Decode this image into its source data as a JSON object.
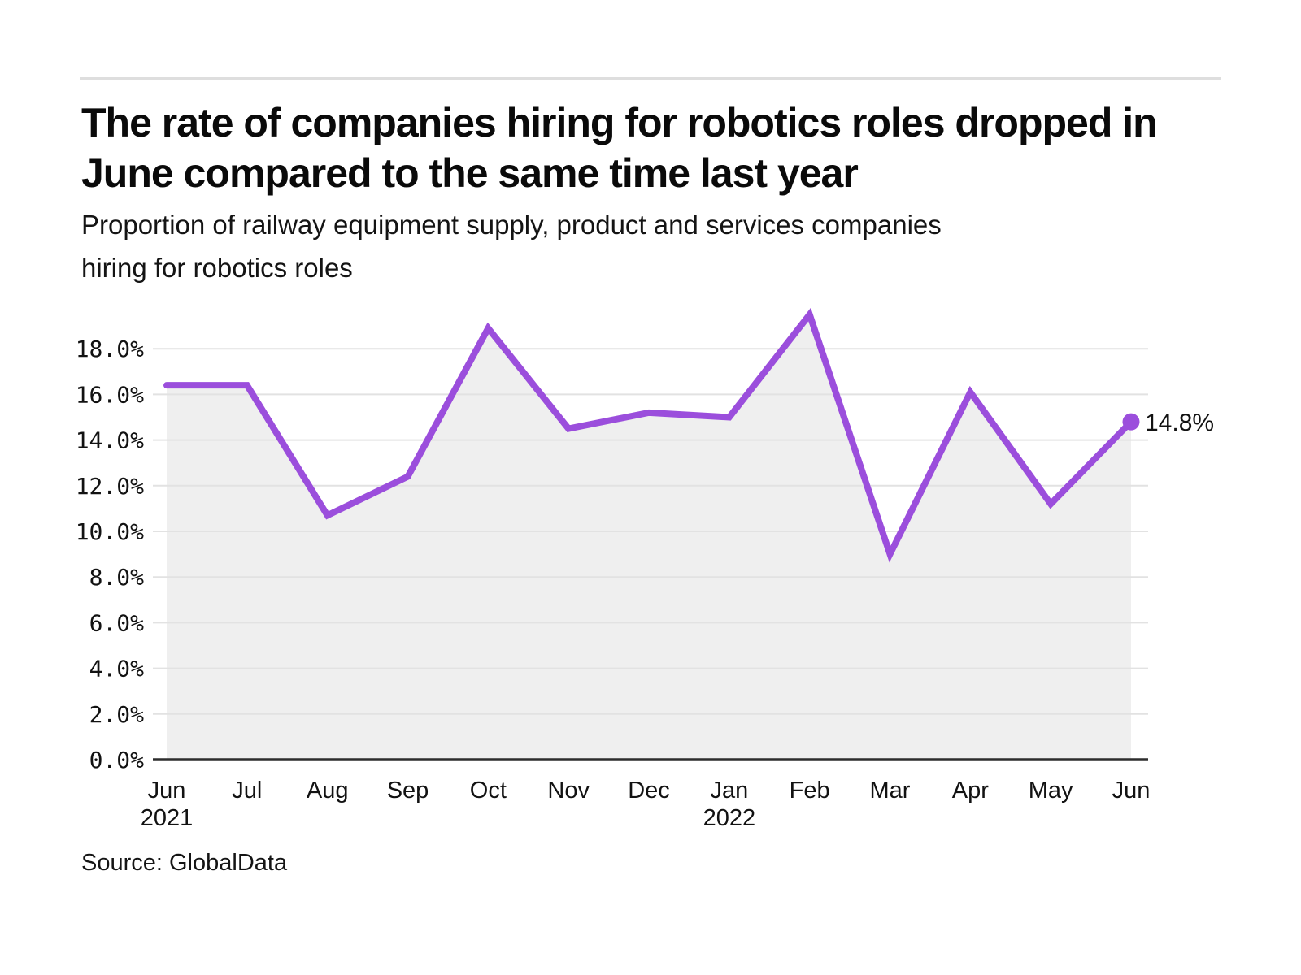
{
  "header": {
    "title_lines": [
      "The rate of companies hiring for robotics roles dropped in",
      "June compared to the same time last year"
    ],
    "subtitle_lines": [
      "Proportion of railway equipment supply, product and services companies",
      "hiring for robotics roles"
    ]
  },
  "footer": {
    "source": "Source: GlobalData"
  },
  "chart_data": {
    "type": "line",
    "title": "The rate of companies hiring for robotics roles dropped in June compared to the same time last year",
    "subtitle": "Proportion of railway equipment supply, product and services companies hiring for robotics roles",
    "source": "Source: GlobalData",
    "categories": [
      "Jun",
      "Jul",
      "Aug",
      "Sep",
      "Oct",
      "Nov",
      "Dec",
      "Jan",
      "Feb",
      "Mar",
      "Apr",
      "May",
      "Jun"
    ],
    "year_markers": [
      {
        "index": 0,
        "label": "2021"
      },
      {
        "index": 7,
        "label": "2022"
      }
    ],
    "series": [
      {
        "name": "Proportion of companies hiring for robotics roles",
        "values": [
          16.4,
          16.4,
          10.7,
          12.4,
          18.9,
          14.5,
          15.2,
          15.0,
          19.5,
          9.0,
          16.1,
          11.2,
          14.8
        ]
      }
    ],
    "end_label": "14.8%",
    "unit": "%",
    "ylim": [
      0,
      19.8
    ],
    "ytick_values": [
      0,
      2,
      4,
      6,
      8,
      10,
      12,
      14,
      16,
      18
    ],
    "ytick_labels": [
      "0.0%",
      "2.0%",
      "4.0%",
      "6.0%",
      "8.0%",
      "10.0%",
      "12.0%",
      "14.0%",
      "16.0%",
      "18.0%"
    ],
    "grid": true,
    "legend": "none",
    "colors": {
      "line": "#9b4edc",
      "area": "#efefef",
      "grid": "#e2e2e2",
      "axis": "#2d2d2d",
      "text": "#121212"
    }
  }
}
